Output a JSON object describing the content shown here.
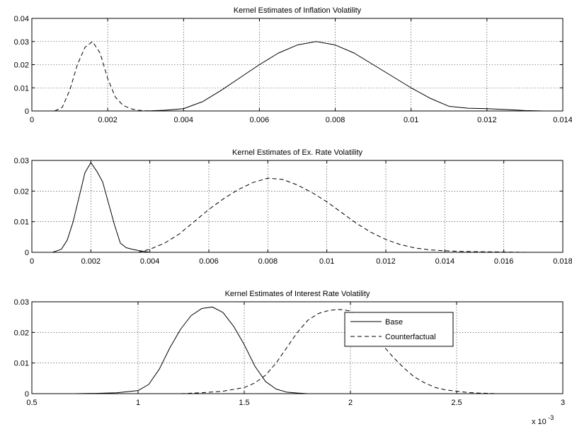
{
  "chart_data": [
    {
      "type": "line",
      "title": "Kernel Estimates of Inflation Volatility",
      "xlim": [
        0,
        0.014
      ],
      "ylim": [
        0,
        0.04
      ],
      "xticks": [
        0,
        0.002,
        0.004,
        0.006,
        0.008,
        0.01,
        0.012,
        0.014
      ],
      "xtick_labels": [
        "0",
        "0.002",
        "0.004",
        "0.006",
        "0.008",
        "0.01",
        "0.012",
        "0.014"
      ],
      "yticks": [
        0,
        0.01,
        0.02,
        0.03,
        0.04
      ],
      "ytick_labels": [
        "0",
        "0.01",
        "0.02",
        "0.03",
        "0.04"
      ],
      "grid": true,
      "series": [
        {
          "style": "solid",
          "x": [
            0.003,
            0.0035,
            0.004,
            0.0045,
            0.005,
            0.0055,
            0.006,
            0.0065,
            0.007,
            0.0075,
            0.008,
            0.0085,
            0.009,
            0.0095,
            0.01,
            0.0105,
            0.011,
            0.0115,
            0.012,
            0.0125,
            0.013,
            0.0135
          ],
          "y": [
            0.0,
            0.0003,
            0.001,
            0.004,
            0.009,
            0.0145,
            0.02,
            0.025,
            0.0285,
            0.03,
            0.0285,
            0.025,
            0.02,
            0.015,
            0.01,
            0.0055,
            0.002,
            0.0012,
            0.001,
            0.0006,
            0.0002,
            0.0
          ]
        },
        {
          "style": "dashed",
          "x": [
            0.0006,
            0.0008,
            0.001,
            0.0012,
            0.0014,
            0.0016,
            0.0018,
            0.002,
            0.0022,
            0.0024,
            0.0026,
            0.0028,
            0.003,
            0.0032
          ],
          "y": [
            0.0,
            0.0015,
            0.009,
            0.02,
            0.0275,
            0.03,
            0.025,
            0.014,
            0.006,
            0.0025,
            0.001,
            0.0003,
            0.0001,
            0.0
          ]
        }
      ]
    },
    {
      "type": "line",
      "title": "Kernel Estimates of Ex. Rate Volatility",
      "xlim": [
        0,
        0.018
      ],
      "ylim": [
        0,
        0.03
      ],
      "xticks": [
        0,
        0.002,
        0.004,
        0.006,
        0.008,
        0.01,
        0.012,
        0.014,
        0.016,
        0.018
      ],
      "xtick_labels": [
        "0",
        "0.002",
        "0.004",
        "0.006",
        "0.008",
        "0.01",
        "0.012",
        "0.014",
        "0.016",
        "0.018"
      ],
      "yticks": [
        0,
        0.01,
        0.02,
        0.03
      ],
      "ytick_labels": [
        "0",
        "0.01",
        "0.02",
        "0.03"
      ],
      "grid": true,
      "series": [
        {
          "style": "solid",
          "x": [
            0.0007,
            0.001,
            0.0012,
            0.0014,
            0.0016,
            0.0018,
            0.002,
            0.0022,
            0.0024,
            0.0026,
            0.0028,
            0.003,
            0.0032,
            0.0034,
            0.0036,
            0.004
          ],
          "y": [
            0.0,
            0.001,
            0.004,
            0.01,
            0.018,
            0.026,
            0.0293,
            0.0265,
            0.023,
            0.016,
            0.009,
            0.003,
            0.0015,
            0.001,
            0.0006,
            0.0
          ]
        },
        {
          "style": "dashed",
          "x": [
            0.0036,
            0.004,
            0.0045,
            0.005,
            0.0055,
            0.006,
            0.0065,
            0.007,
            0.0075,
            0.008,
            0.0085,
            0.009,
            0.0095,
            0.01,
            0.0105,
            0.011,
            0.0115,
            0.012,
            0.0125,
            0.013,
            0.0135,
            0.014,
            0.0145,
            0.015,
            0.016,
            0.0168
          ],
          "y": [
            0.0,
            0.001,
            0.003,
            0.006,
            0.01,
            0.014,
            0.0175,
            0.0205,
            0.0228,
            0.0242,
            0.0238,
            0.022,
            0.0195,
            0.0165,
            0.013,
            0.0095,
            0.0065,
            0.0042,
            0.0025,
            0.0014,
            0.0008,
            0.0005,
            0.0003,
            0.0002,
            0.0001,
            0.0
          ]
        }
      ]
    },
    {
      "type": "line",
      "title": "Kernel Estimates of Interest Rate Volatility",
      "xlim": [
        0.5,
        3
      ],
      "ylim": [
        0,
        0.03
      ],
      "xticks": [
        0.5,
        1,
        1.5,
        2,
        2.5,
        3
      ],
      "xtick_labels": [
        "0.5",
        "1",
        "1.5",
        "2",
        "2.5",
        "3"
      ],
      "yticks": [
        0,
        0.01,
        0.02,
        0.03
      ],
      "ytick_labels": [
        "0",
        "0.01",
        "0.02",
        "0.03"
      ],
      "grid": true,
      "x_multiplier_base": "x 10",
      "x_multiplier_exponent": "-3",
      "legend": {
        "position": "top-right",
        "entries": [
          "Base",
          "Counterfactual"
        ]
      },
      "series": [
        {
          "name": "Base",
          "style": "solid",
          "x": [
            0.7,
            0.8,
            0.9,
            1.0,
            1.05,
            1.1,
            1.15,
            1.2,
            1.25,
            1.3,
            1.35,
            1.4,
            1.45,
            1.5,
            1.55,
            1.6,
            1.65,
            1.7,
            1.75,
            1.8
          ],
          "y": [
            0.0,
            0.0001,
            0.0003,
            0.001,
            0.003,
            0.008,
            0.015,
            0.021,
            0.0255,
            0.0278,
            0.0283,
            0.0265,
            0.022,
            0.016,
            0.009,
            0.004,
            0.0015,
            0.0005,
            0.0002,
            0.0
          ]
        },
        {
          "name": "Counterfactual",
          "style": "dashed",
          "x": [
            1.2,
            1.3,
            1.4,
            1.5,
            1.55,
            1.6,
            1.65,
            1.7,
            1.75,
            1.8,
            1.85,
            1.9,
            1.95,
            2.0,
            2.05,
            2.1,
            2.15,
            2.2,
            2.25,
            2.3,
            2.35,
            2.4,
            2.45,
            2.5,
            2.55,
            2.6,
            2.7
          ],
          "y": [
            0.0,
            0.0003,
            0.0008,
            0.002,
            0.0035,
            0.006,
            0.01,
            0.015,
            0.02,
            0.024,
            0.0262,
            0.0272,
            0.0275,
            0.027,
            0.0245,
            0.02,
            0.016,
            0.012,
            0.0085,
            0.0055,
            0.0035,
            0.002,
            0.0012,
            0.0008,
            0.0004,
            0.0002,
            0.0
          ]
        }
      ]
    }
  ]
}
